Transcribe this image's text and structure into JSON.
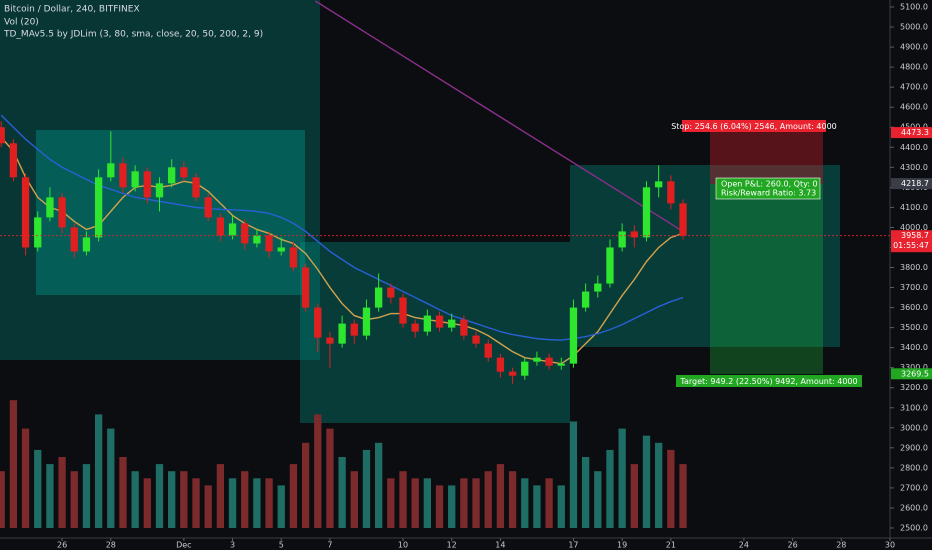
{
  "chart_data": {
    "type": "candlestick",
    "title": "Bitcoin / Dollar, 240, BITFINEX",
    "indicators": [
      "Vol (20)",
      "TD_MAv5.5 by JDLim (3, 80, sma, close, 20, 50, 200, 2, 9)"
    ],
    "up_color": "#2ee62e",
    "down_color": "#e02020",
    "volume_up_color": "#1e6e66",
    "volume_down_color": "#7c2a2c",
    "x": [
      23.5,
      24,
      24.5,
      25,
      25.5,
      26,
      26.5,
      27,
      27.5,
      28,
      28.5,
      29,
      29.5,
      30,
      30.5,
      31,
      31.5,
      32,
      32.5,
      33,
      33.5,
      34,
      34.5,
      35,
      35.5,
      36,
      36.5,
      37,
      37.5,
      38,
      38.5,
      39,
      39.5,
      40,
      40.5,
      41,
      41.5,
      42,
      42.5,
      43,
      43.5,
      44,
      44.5,
      45,
      45.5,
      46,
      46.5,
      47,
      47.5,
      48,
      48.5,
      49,
      49.5,
      50,
      50.5,
      51,
      51.5
    ],
    "candles": [
      [
        4500,
        4530,
        4400,
        4420
      ],
      [
        4420,
        4440,
        4230,
        4250
      ],
      [
        4250,
        4270,
        3860,
        3900
      ],
      [
        3900,
        4080,
        3880,
        4050
      ],
      [
        4050,
        4200,
        4030,
        4150
      ],
      [
        4150,
        4170,
        3970,
        4000
      ],
      [
        4000,
        4020,
        3850,
        3880
      ],
      [
        3880,
        3980,
        3860,
        3950
      ],
      [
        3950,
        4290,
        3930,
        4250
      ],
      [
        4250,
        4480,
        4230,
        4320
      ],
      [
        4320,
        4350,
        4170,
        4200
      ],
      [
        4200,
        4310,
        4180,
        4280
      ],
      [
        4280,
        4300,
        4120,
        4150
      ],
      [
        4150,
        4250,
        4080,
        4220
      ],
      [
        4220,
        4340,
        4200,
        4300
      ],
      [
        4300,
        4330,
        4230,
        4250
      ],
      [
        4250,
        4270,
        4130,
        4150
      ],
      [
        4150,
        4170,
        4030,
        4050
      ],
      [
        4050,
        4070,
        3930,
        3960
      ],
      [
        3960,
        4060,
        3940,
        4020
      ],
      [
        4020,
        4040,
        3890,
        3920
      ],
      [
        3920,
        3990,
        3900,
        3960
      ],
      [
        3960,
        3980,
        3850,
        3880
      ],
      [
        3880,
        3950,
        3860,
        3900
      ],
      [
        3900,
        3930,
        3780,
        3800
      ],
      [
        3800,
        3820,
        3580,
        3600
      ],
      [
        3600,
        3620,
        3380,
        3450
      ],
      [
        3450,
        3480,
        3300,
        3420
      ],
      [
        3420,
        3560,
        3400,
        3520
      ],
      [
        3520,
        3540,
        3420,
        3460
      ],
      [
        3460,
        3640,
        3440,
        3600
      ],
      [
        3600,
        3770,
        3580,
        3700
      ],
      [
        3700,
        3720,
        3620,
        3650
      ],
      [
        3650,
        3670,
        3500,
        3520
      ],
      [
        3520,
        3540,
        3450,
        3480
      ],
      [
        3480,
        3590,
        3460,
        3560
      ],
      [
        3560,
        3580,
        3480,
        3500
      ],
      [
        3500,
        3570,
        3480,
        3540
      ],
      [
        3540,
        3560,
        3440,
        3460
      ],
      [
        3460,
        3480,
        3400,
        3420
      ],
      [
        3420,
        3440,
        3330,
        3350
      ],
      [
        3350,
        3370,
        3250,
        3280
      ],
      [
        3280,
        3300,
        3220,
        3260
      ],
      [
        3260,
        3350,
        3240,
        3330
      ],
      [
        3330,
        3380,
        3310,
        3350
      ],
      [
        3350,
        3370,
        3290,
        3310
      ],
      [
        3310,
        3350,
        3290,
        3320
      ],
      [
        3320,
        3640,
        3300,
        3600
      ],
      [
        3600,
        3720,
        3580,
        3680
      ],
      [
        3680,
        3760,
        3650,
        3720
      ],
      [
        3720,
        3940,
        3700,
        3900
      ],
      [
        3900,
        4020,
        3880,
        3980
      ],
      [
        3980,
        4010,
        3900,
        3950
      ],
      [
        3950,
        4230,
        3930,
        4200
      ],
      [
        4200,
        4310,
        4150,
        4230
      ],
      [
        4230,
        4260,
        4090,
        4120
      ],
      [
        4120,
        4140,
        3940,
        3960
      ]
    ],
    "volume": [
      40,
      90,
      70,
      55,
      45,
      50,
      40,
      45,
      80,
      70,
      50,
      40,
      35,
      45,
      40,
      40,
      35,
      30,
      45,
      35,
      40,
      35,
      35,
      30,
      45,
      60,
      80,
      70,
      50,
      40,
      55,
      60,
      35,
      40,
      35,
      35,
      30,
      30,
      35,
      35,
      40,
      45,
      40,
      35,
      30,
      35,
      30,
      75,
      50,
      40,
      55,
      70,
      45,
      65,
      60,
      55,
      45
    ],
    "vlim": [
      0,
      100
    ],
    "lines": [
      {
        "color": "#d2a24c",
        "values": [
          4450,
          4380,
          4250,
          4150,
          4100,
          4080,
          4030,
          3990,
          4010,
          4080,
          4150,
          4200,
          4210,
          4200,
          4210,
          4230,
          4220,
          4180,
          4120,
          4060,
          4020,
          3990,
          3970,
          3940,
          3920,
          3870,
          3790,
          3700,
          3620,
          3560,
          3540,
          3550,
          3570,
          3570,
          3550,
          3540,
          3530,
          3520,
          3510,
          3490,
          3460,
          3420,
          3380,
          3350,
          3340,
          3330,
          3320,
          3360,
          3420,
          3480,
          3570,
          3660,
          3740,
          3830,
          3900,
          3950,
          3970
        ]
      },
      {
        "color": "#2a5fd6",
        "values": [
          4560,
          4500,
          4440,
          4390,
          4340,
          4300,
          4270,
          4240,
          4210,
          4190,
          4170,
          4150,
          4140,
          4130,
          4120,
          4110,
          4100,
          4095,
          4090,
          4088,
          4085,
          4080,
          4070,
          4050,
          4020,
          3980,
          3930,
          3880,
          3840,
          3800,
          3770,
          3740,
          3710,
          3680,
          3650,
          3620,
          3590,
          3560,
          3540,
          3520,
          3500,
          3480,
          3465,
          3455,
          3445,
          3440,
          3438,
          3445,
          3455,
          3470,
          3490,
          3515,
          3545,
          3575,
          3605,
          3630,
          3650
        ]
      },
      {
        "color": "#8a2f8a",
        "x": [
          36.4,
          51.5
        ],
        "values": [
          5130,
          3980
        ]
      }
    ],
    "xlim": [
      23.45,
      60
    ],
    "ylim": [
      2450,
      5135
    ],
    "xticks": [
      26,
      28,
      {
        "value": 31,
        "label": "Dec"
      },
      {
        "value": 33,
        "label": "3"
      },
      {
        "value": 35,
        "label": "5"
      },
      {
        "value": 37,
        "label": "7"
      },
      {
        "value": 40,
        "label": "10"
      },
      {
        "value": 42,
        "label": "12"
      },
      {
        "value": 44,
        "label": "14"
      },
      {
        "value": 47,
        "label": "17"
      },
      {
        "value": 49,
        "label": "19"
      },
      {
        "value": 51,
        "label": "21"
      },
      {
        "value": 54,
        "label": "24"
      },
      {
        "value": 56,
        "label": "26"
      },
      {
        "value": 58,
        "label": "28"
      },
      {
        "value": 60,
        "label": "30"
      }
    ],
    "yticks": [
      {
        "value": 5100,
        "label": "5100.0"
      },
      {
        "value": 5000,
        "label": "5000.0"
      },
      {
        "value": 4900,
        "label": "4900.0"
      },
      {
        "value": 4800,
        "label": "4800.0"
      },
      {
        "value": 4700,
        "label": "4700.0"
      },
      {
        "value": 4600,
        "label": "4600.0"
      },
      {
        "value": 4500,
        "label": "4500.0"
      },
      {
        "value": 4400,
        "label": "4400.0"
      },
      {
        "value": 4300,
        "label": "4300.0"
      },
      {
        "value": 4200,
        "label": "4200.0"
      },
      {
        "value": 4100,
        "label": "4100.0"
      },
      {
        "value": 4000,
        "label": "4000.0"
      },
      {
        "value": 3900,
        "label": "3900.0"
      },
      {
        "value": 3800,
        "label": "3800.0"
      },
      {
        "value": 3700,
        "label": "3700.0"
      },
      {
        "value": 3600,
        "label": "3600.0"
      },
      {
        "value": 3500,
        "label": "3500.0"
      },
      {
        "value": 3400,
        "label": "3400.0"
      },
      {
        "value": 3300,
        "label": "3300.0"
      },
      {
        "value": 3200,
        "label": "3200.0"
      },
      {
        "value": 3100,
        "label": "3100.0"
      },
      {
        "value": 3000,
        "label": "3000.0"
      },
      {
        "value": 2900,
        "label": "2900.0"
      },
      {
        "value": 2800,
        "label": "2800.0"
      },
      {
        "value": 2700,
        "label": "2700.0"
      },
      {
        "value": 2600,
        "label": "2600.0"
      },
      {
        "value": 2500,
        "label": "2500.0"
      }
    ],
    "price_tags": [
      {
        "value": 4473.3,
        "color": "#e8232f"
      },
      {
        "value": 4218.7,
        "color": "#3a3d45"
      },
      {
        "value": 3958.7,
        "color": "#e8232f"
      },
      {
        "value": 3269.5,
        "color": "#22a722"
      }
    ],
    "countdown": "01:55:47",
    "position_tool": {
      "stop_label": "Stop: 254.6 (6.04%) 2546, Amount: 4000",
      "pnl_label": "Open P&L: 260.0, Qty: 0",
      "rr_label": "Risk/Reward Ratio: 3.73",
      "target_label": "Target: 949.2 (22.50%) 9492, Amount: 4000"
    }
  }
}
